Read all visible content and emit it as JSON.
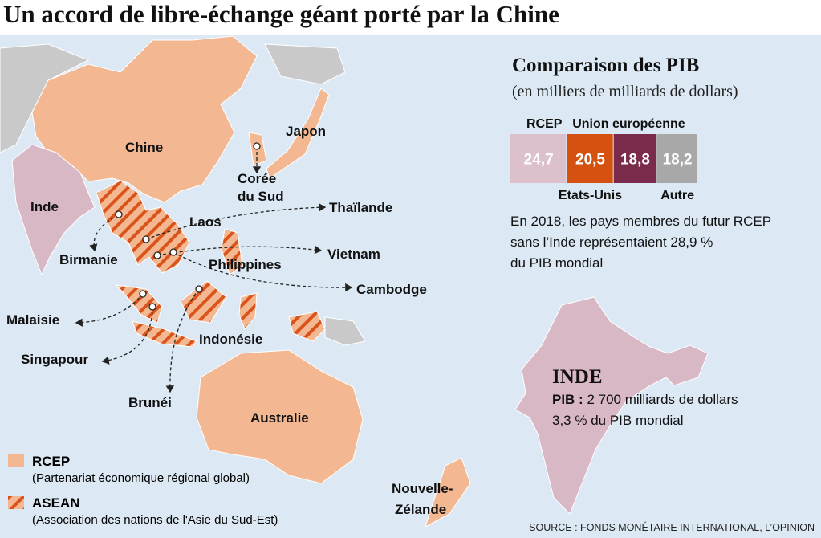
{
  "header": {
    "title": "Un accord de libre-échange géant porté par la Chine"
  },
  "map": {
    "labels": [
      "Chine",
      "Japon",
      "Corée",
      "du Sud",
      "Inde",
      "Thaïlande",
      "Laos",
      "Birmanie",
      "Vietnam",
      "Philippines",
      "Cambodge",
      "Malaisie",
      "Indonésie",
      "Singapour",
      "Brunéi",
      "Australie",
      "Nouvelle-",
      "Zélande"
    ]
  },
  "legend": {
    "items": [
      {
        "name": "RCEP",
        "description": "(Partenariat économique régional global)"
      },
      {
        "name": "ASEAN",
        "description": "(Association des nations de l'Asie du Sud-Est)"
      }
    ]
  },
  "chart_data": {
    "type": "stacked-bar",
    "title": "Comparaison des PIB",
    "subtitle": "(en milliers de milliards de dollars)",
    "series": [
      {
        "name": "RCEP",
        "color": "#dcc0cc",
        "values": [
          24.7
        ],
        "value_labels": [
          "24,7"
        ]
      },
      {
        "name": "Etats-Unis",
        "color": "#d4510f",
        "values": [
          20.5
        ],
        "value_labels": [
          "20,5"
        ]
      },
      {
        "name": "Union européenne",
        "color": "#7a2a4a",
        "values": [
          18.8
        ],
        "value_labels": [
          "18,8"
        ]
      },
      {
        "name": "Autre",
        "color": "#a8a8a8",
        "values": [
          18.2
        ],
        "value_labels": [
          "18,2"
        ]
      }
    ]
  },
  "note": {
    "lines": [
      "En 2018, les pays membres du futur RCEP",
      "sans l’Inde représentaient 28,9 %",
      "du PIB mondial"
    ]
  },
  "inde": {
    "title": "INDE",
    "pib_label": "PIB :",
    "pib_value": " 2 700 milliards de dollars",
    "share": "3,3 % du PIB mondial"
  },
  "source": "SOURCE : FONDS MONÉTAIRE INTERNATIONAL, L’OPINION"
}
